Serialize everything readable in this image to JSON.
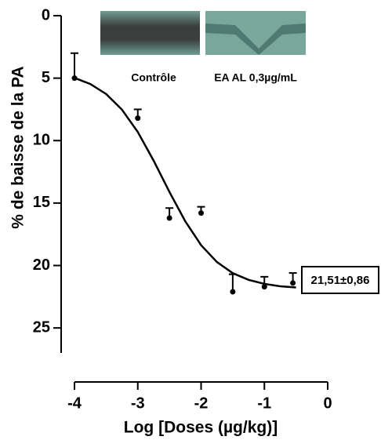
{
  "chart_data": {
    "type": "scatter",
    "y_label": "% de baisse de la PA",
    "x_label": "Log [Doses (µg/kg)]",
    "inset_labels": [
      "Contrôle",
      "EA AL 0,3µg/mL"
    ],
    "annotation": "21,51±0,86",
    "x": [
      -4,
      -3,
      -2.5,
      -2,
      -1.5,
      -1,
      -0.55
    ],
    "values": [
      5.0,
      8.2,
      16.2,
      15.8,
      22.1,
      21.7,
      21.4
    ],
    "errors": [
      2.0,
      0.7,
      0.8,
      0.5,
      1.4,
      0.8,
      0.8
    ],
    "fit": {
      "x": [
        -4,
        -3.75,
        -3.5,
        -3.25,
        -3,
        -2.75,
        -2.5,
        -2.25,
        -2,
        -1.75,
        -1.5,
        -1.25,
        -1,
        -0.75,
        -0.5
      ],
      "y": [
        4.98,
        5.47,
        6.27,
        7.52,
        9.31,
        11.6,
        14.11,
        16.46,
        18.37,
        19.72,
        20.61,
        21.15,
        21.47,
        21.66,
        21.76
      ]
    },
    "color": "#000000",
    "xlim": [
      -4,
      0
    ],
    "xticks": [
      -4,
      -3,
      -2,
      -1,
      0
    ],
    "ylim": [
      0,
      27
    ],
    "yticks": [
      0,
      5,
      10,
      15,
      20,
      25
    ],
    "y_inverted": true
  }
}
